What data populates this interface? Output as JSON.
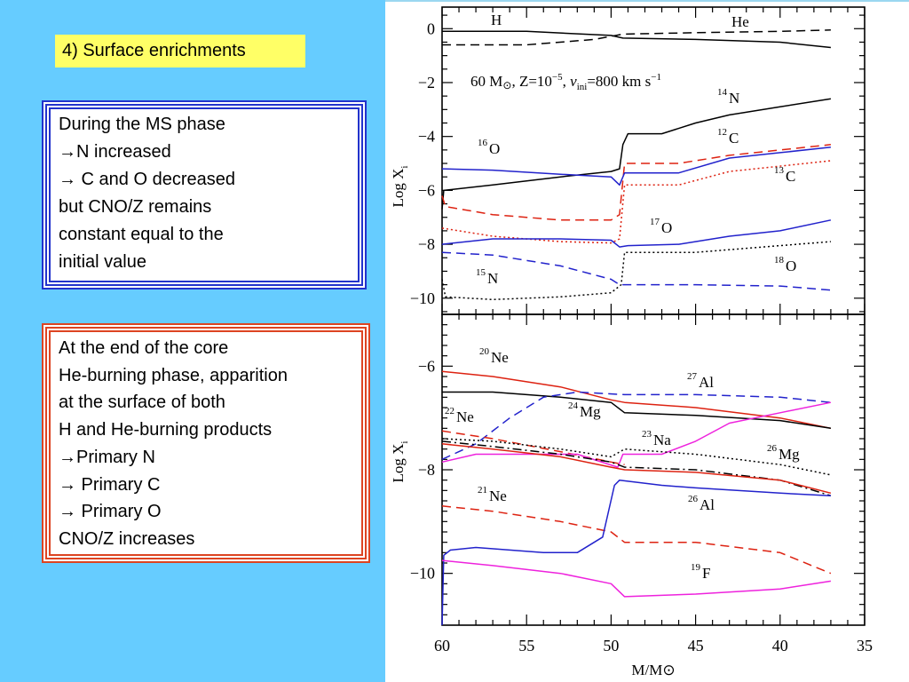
{
  "slide": {
    "title": "4) Surface enrichments",
    "box_ms": {
      "lines": [
        "During the MS phase",
        "→N increased",
        "→ C and O decreased",
        "but CNO/Z remains",
        "constant equal to the",
        "initial value"
      ]
    },
    "box_he": {
      "lines": [
        "At the end of the core",
        "He-burning phase, apparition",
        "at the surface of both",
        "H and He-burning products",
        "→Primary N",
        "→ Primary C",
        "→ Primary O",
        "CNO/Z increases"
      ]
    }
  },
  "figure": {
    "annotation": "60 M⊙, Z=10⁻⁵, vᵢₙᵢ=800 km s⁻¹",
    "annotation_parts": [
      "60 M",
      "⊙",
      ", Z=10",
      "−5",
      ", ",
      "v",
      "ini",
      "=800 km s",
      "−1"
    ],
    "xlabel": "M/M⊙",
    "ylabel": "Log X",
    "ylabel_sub": "i",
    "x_ticks": [
      "60",
      "55",
      "50",
      "45",
      "40",
      "35"
    ],
    "top_y_ticks": [
      "0",
      "−2",
      "−4",
      "−6",
      "−8",
      "−10"
    ],
    "bottom_y_ticks": [
      "−6",
      "−8",
      "−10"
    ],
    "top_labels": {
      "H": "H",
      "He": "He",
      "N14": "14",
      "N14b": "N",
      "C12": "12",
      "C12b": "C",
      "O16": "16",
      "O16b": "O",
      "C13": "13",
      "C13b": "C",
      "O17": "17",
      "O17b": "O",
      "O18": "18",
      "O18b": "O",
      "N15": "15",
      "N15b": "N"
    },
    "bottom_labels": {
      "Ne20": "20",
      "Ne20b": "Ne",
      "Al27": "27",
      "Al27b": "Al",
      "Ne22": "22",
      "Ne22b": "Ne",
      "Mg24": "24",
      "Mg24b": "Mg",
      "Na23": "23",
      "Na23b": "Na",
      "Mg26": "26",
      "Mg26b": "Mg",
      "Ne21": "21",
      "Ne21b": "Ne",
      "Al26": "26",
      "Al26b": "Al",
      "F19": "19",
      "F19b": "F"
    },
    "colors": {
      "black": "#000000",
      "blue": "#2222cc",
      "red": "#dd2211",
      "magenta": "#ee22dd"
    },
    "chart_data": [
      {
        "type": "line",
        "panel": "top",
        "xlabel": "",
        "ylabel": "Log X",
        "xlim": [
          60,
          35
        ],
        "ylim": [
          -10.6,
          0.8
        ],
        "series": [
          {
            "name": "H",
            "color": "#000000",
            "style": "solid",
            "x": [
              60,
              55,
              50,
              49.3,
              45,
              40,
              37
            ],
            "y": [
              -0.1,
              -0.1,
              -0.25,
              -0.35,
              -0.4,
              -0.5,
              -0.7
            ]
          },
          {
            "name": "He",
            "color": "#000000",
            "style": "dashed",
            "x": [
              60,
              55,
              51,
              49.3,
              45,
              40,
              37
            ],
            "y": [
              -0.6,
              -0.6,
              -0.4,
              -0.2,
              -0.15,
              -0.1,
              -0.05
            ]
          },
          {
            "name": "14N",
            "color": "#000000",
            "style": "solid",
            "x": [
              60,
              59.9,
              57,
              53,
              50,
              49.5,
              49.3,
              49,
              47,
              45,
              43,
              40,
              37
            ],
            "y": [
              -6.7,
              -6.0,
              -5.8,
              -5.5,
              -5.3,
              -5.2,
              -4.3,
              -3.9,
              -3.9,
              -3.5,
              -3.2,
              -2.9,
              -2.6
            ]
          },
          {
            "name": "12C",
            "color": "#dd2211",
            "style": "dashed",
            "x": [
              60,
              59.8,
              57,
              53,
              50,
              49.5,
              49.2,
              46,
              43,
              40,
              37
            ],
            "y": [
              -6.2,
              -6.6,
              -6.9,
              -7.1,
              -7.1,
              -6.9,
              -5.0,
              -5.0,
              -4.7,
              -4.5,
              -4.3
            ]
          },
          {
            "name": "16O",
            "color": "#2222cc",
            "style": "solid",
            "x": [
              60,
              57,
              53,
              50,
              49.5,
              49.2,
              46,
              43,
              40,
              37
            ],
            "y": [
              -5.2,
              -5.25,
              -5.4,
              -5.5,
              -5.8,
              -5.35,
              -5.35,
              -4.8,
              -4.6,
              -4.4
            ]
          },
          {
            "name": "13C",
            "color": "#dd2211",
            "style": "dotted",
            "x": [
              60,
              57,
              53,
              50,
              49.5,
              49.2,
              46,
              43,
              40,
              37
            ],
            "y": [
              -7.4,
              -7.7,
              -7.9,
              -7.95,
              -7.8,
              -5.8,
              -5.8,
              -5.3,
              -5.1,
              -4.9
            ]
          },
          {
            "name": "17O",
            "color": "#2222cc",
            "style": "solid",
            "x": [
              60,
              57,
              53,
              50,
              49.5,
              49,
              46,
              43,
              40,
              37
            ],
            "y": [
              -8.0,
              -7.8,
              -7.8,
              -7.85,
              -8.1,
              -8.05,
              -8.0,
              -7.7,
              -7.5,
              -7.1
            ]
          },
          {
            "name": "18O",
            "color": "#2222cc",
            "style": "dashed",
            "x": [
              60,
              57,
              53,
              50,
              49.5,
              45,
              40,
              37
            ],
            "y": [
              -8.3,
              -8.4,
              -8.8,
              -9.3,
              -9.5,
              -9.5,
              -9.55,
              -9.7
            ]
          },
          {
            "name": "15N",
            "color": "#000000",
            "style": "dotted",
            "x": [
              60,
              59.8,
              57,
              53,
              50,
              49.4,
              49.2,
              45,
              40,
              37
            ],
            "y": [
              -9.3,
              -9.95,
              -10.05,
              -9.95,
              -9.8,
              -9.5,
              -8.3,
              -8.3,
              -8.05,
              -7.9
            ]
          }
        ]
      },
      {
        "type": "line",
        "panel": "bottom",
        "xlabel": "M/M⊙",
        "ylabel": "Log X",
        "xlim": [
          60,
          35
        ],
        "ylim": [
          -11.0,
          -5.0
        ],
        "series": [
          {
            "name": "20Ne",
            "color": "#dd2211",
            "style": "solid",
            "x": [
              60,
              57,
              53,
              50,
              49.2,
              45,
              40,
              37
            ],
            "y": [
              -6.1,
              -6.2,
              -6.4,
              -6.65,
              -6.7,
              -6.8,
              -7.0,
              -7.2
            ]
          },
          {
            "name": "24Mg",
            "color": "#000000",
            "style": "solid",
            "x": [
              60,
              57,
              53,
              50,
              49.2,
              45,
              40,
              37
            ],
            "y": [
              -6.5,
              -6.5,
              -6.6,
              -6.7,
              -6.9,
              -6.95,
              -7.05,
              -7.2
            ]
          },
          {
            "name": "27Al",
            "color": "#2222cc",
            "style": "dashed",
            "x": [
              60,
              58,
              56,
              54,
              52,
              49.2,
              45,
              40,
              37
            ],
            "y": [
              -7.8,
              -7.5,
              -7.0,
              -6.6,
              -6.5,
              -6.55,
              -6.55,
              -6.6,
              -6.7
            ]
          },
          {
            "name": "22Ne",
            "color": "#dd2211",
            "style": "dashed",
            "x": [
              60,
              57,
              53,
              50,
              49.2
            ],
            "y": [
              -7.25,
              -7.4,
              -7.65,
              -7.85,
              -7.9
            ]
          },
          {
            "name": "23Na",
            "color": "#ee22dd",
            "style": "solid",
            "x": [
              60,
              58,
              55,
              52,
              49.6,
              49.3,
              47,
              45,
              43,
              40,
              37
            ],
            "y": [
              -7.85,
              -7.7,
              -7.7,
              -7.7,
              -7.95,
              -7.7,
              -7.7,
              -7.45,
              -7.1,
              -6.9,
              -6.7
            ]
          },
          {
            "name": "26Mg",
            "color": "#000000",
            "style": "dotted",
            "x": [
              60,
              57,
              53,
              50,
              49.2,
              45,
              40,
              37
            ],
            "y": [
              -7.4,
              -7.45,
              -7.6,
              -7.75,
              -7.6,
              -7.7,
              -7.9,
              -8.1
            ]
          },
          {
            "name": "26Mg (dash-dot)",
            "color": "#000000",
            "style": "dashdot",
            "x": [
              60,
              57,
              53,
              50,
              49.2,
              45,
              40,
              37
            ],
            "y": [
              -7.45,
              -7.55,
              -7.7,
              -7.85,
              -7.95,
              -8.0,
              -8.2,
              -8.5
            ]
          },
          {
            "name": "23Na (red)",
            "color": "#dd2211",
            "style": "solid",
            "x": [
              60,
              57,
              53,
              50,
              49.2,
              45,
              40,
              37
            ],
            "y": [
              -7.5,
              -7.6,
              -7.75,
              -7.95,
              -8.0,
              -8.05,
              -8.2,
              -8.45
            ]
          },
          {
            "name": "21Ne",
            "color": "#dd2211",
            "style": "dashed",
            "x": [
              60,
              57,
              53,
              50,
              49.2,
              47,
              45,
              40,
              37
            ],
            "y": [
              -8.7,
              -8.8,
              -9.0,
              -9.2,
              -9.4,
              -9.4,
              -9.4,
              -9.6,
              -10.0
            ]
          },
          {
            "name": "26Al",
            "color": "#2222cc",
            "style": "solid",
            "x": [
              60,
              59.9,
              59.5,
              58,
              56,
              54,
              52,
              50.5,
              49.8,
              49.5,
              47,
              45,
              40,
              37
            ],
            "y": [
              -11.0,
              -9.65,
              -9.55,
              -9.5,
              -9.55,
              -9.6,
              -9.6,
              -9.3,
              -8.3,
              -8.2,
              -8.3,
              -8.35,
              -8.45,
              -8.5
            ]
          },
          {
            "name": "19F",
            "color": "#ee22dd",
            "style": "solid",
            "x": [
              60,
              57,
              53,
              50,
              49.2,
              45,
              40,
              37
            ],
            "y": [
              -9.75,
              -9.85,
              -10.0,
              -10.2,
              -10.45,
              -10.4,
              -10.3,
              -10.15
            ]
          }
        ]
      }
    ]
  }
}
